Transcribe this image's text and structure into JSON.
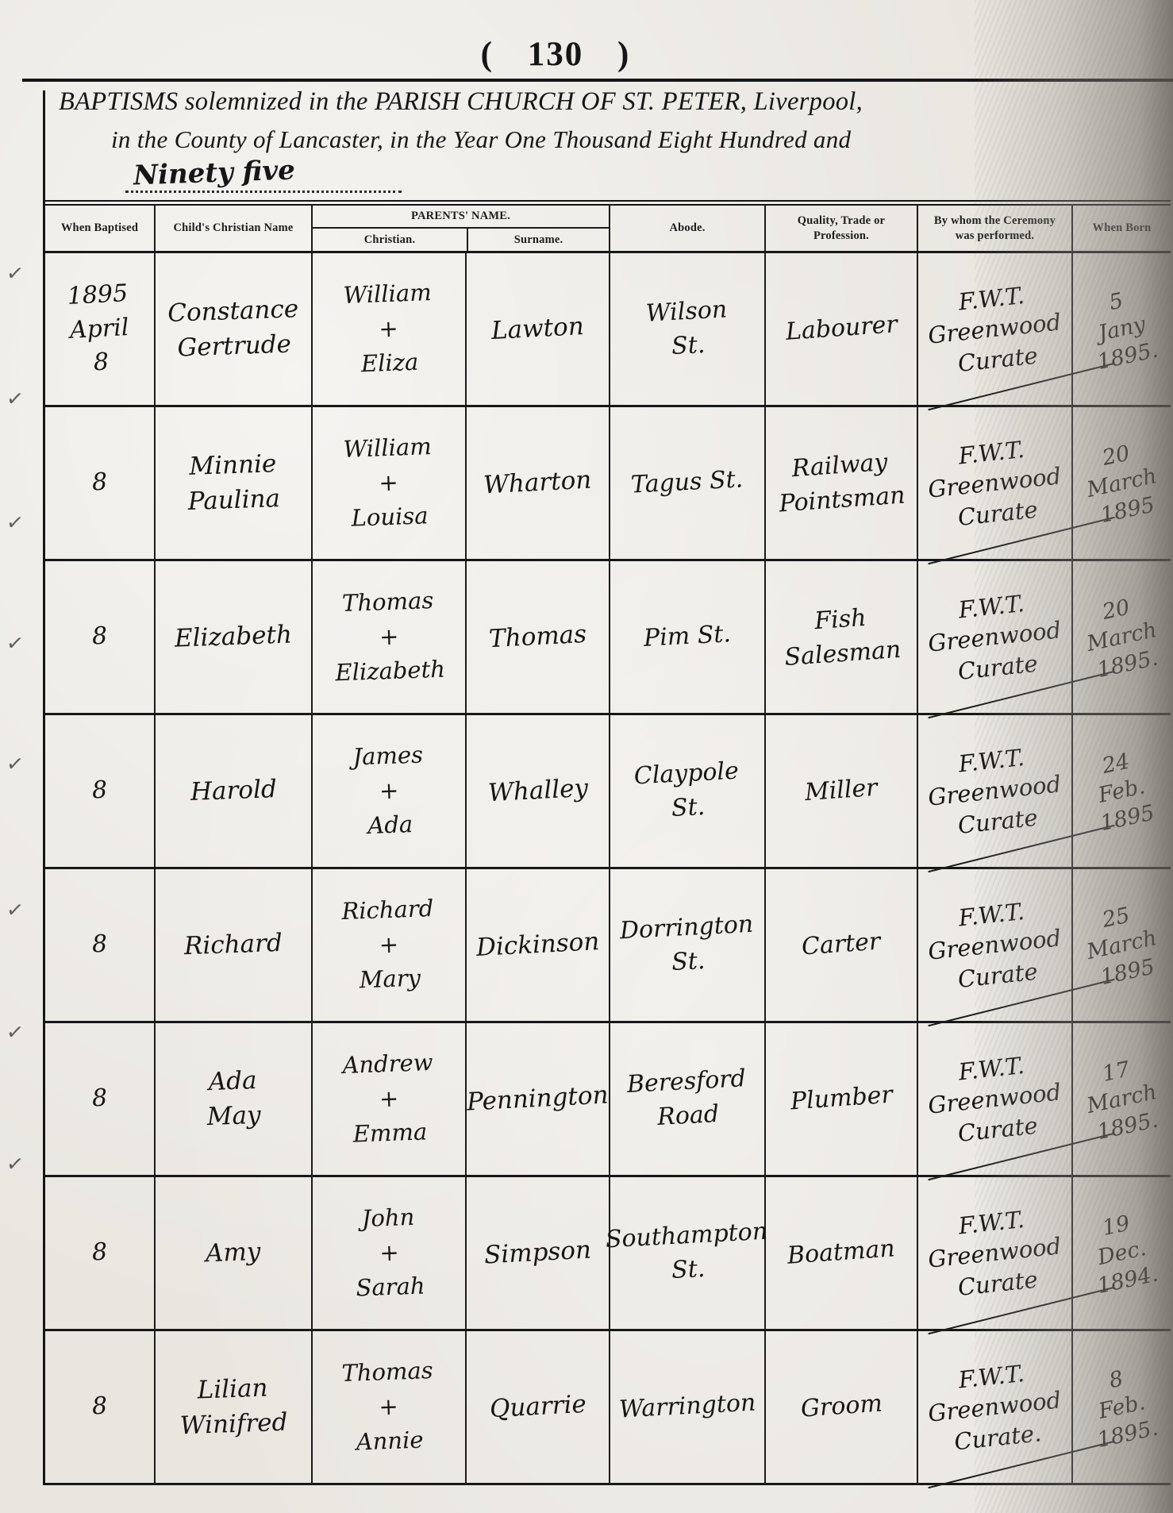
{
  "colors": {
    "ink": "#181614",
    "paper": "#e9e6e0"
  },
  "page": {
    "page_number": "( 130 )",
    "title_line1": "BAPTISMS solemnized in the PARISH CHURCH OF ST. PETER, Liverpool,",
    "title_line2": "in the County of Lancaster, in the Year One Thousand Eight Hundred and",
    "year_written": "Ninety five"
  },
  "table": {
    "headers": {
      "baptised": "When Baptised",
      "child": "Child's Christian Name",
      "parents": "PARENTS'  NAME.",
      "christian": "Christian.",
      "surname": "Surname.",
      "abode": "Abode.",
      "trade": "Quality, Trade or\nProfession.",
      "ceremony": "By whom the Ceremony\nwas performed.",
      "born": "When Born"
    },
    "rows": [
      {
        "mark": "✓",
        "baptised": "1895\nApril\n8",
        "child": "Constance\nGertrude",
        "parents": "William\n+\nEliza",
        "surname": "Lawton",
        "abode": "Wilson\nSt.",
        "trade": "Labourer",
        "ceremony": "F.W.T.\nGreenwood\nCurate",
        "born": "5\nJany\n1895."
      },
      {
        "mark": "✓",
        "baptised": "8",
        "child": "Minnie\nPaulina",
        "parents": "William\n+\nLouisa",
        "surname": "Wharton",
        "abode": "Tagus St.",
        "trade": "Railway\nPointsman",
        "ceremony": "F.W.T.\nGreenwood\nCurate",
        "born": "20\nMarch\n1895"
      },
      {
        "mark": "✓",
        "baptised": "8",
        "child": "Elizabeth",
        "parents": "Thomas\n+\nElizabeth",
        "surname": "Thomas",
        "abode": "Pim St.",
        "trade": "Fish\nSalesman",
        "ceremony": "F.W.T.\nGreenwood\nCurate",
        "born": "20\nMarch\n1895."
      },
      {
        "mark": "✓",
        "baptised": "8",
        "child": "Harold",
        "parents": "James\n+\nAda",
        "surname": "Whalley",
        "abode": "Claypole\nSt.",
        "trade": "Miller",
        "ceremony": "F.W.T.\nGreenwood\nCurate",
        "born": "24\nFeb.\n1895"
      },
      {
        "mark": "✓",
        "baptised": "8",
        "child": "Richard",
        "parents": "Richard\n+\nMary",
        "surname": "Dickinson",
        "abode": "Dorrington\nSt.",
        "trade": "Carter",
        "ceremony": "F.W.T.\nGreenwood\nCurate",
        "born": "25\nMarch\n1895"
      },
      {
        "mark": "✓",
        "baptised": "8",
        "child": "Ada\nMay",
        "parents": "Andrew\n+\nEmma",
        "surname": "Pennington",
        "abode": "Beresford\nRoad",
        "trade": "Plumber",
        "ceremony": "F.W.T.\nGreenwood\nCurate",
        "born": "17\nMarch\n1895."
      },
      {
        "mark": "✓",
        "baptised": "8",
        "child": "Amy",
        "parents": "John\n+\nSarah",
        "surname": "Simpson",
        "abode": "Southampton\nSt.",
        "trade": "Boatman",
        "ceremony": "F.W.T.\nGreenwood\nCurate",
        "born": "19\nDec.\n1894."
      },
      {
        "mark": "✓",
        "baptised": "8",
        "child": "Lilian\nWinifred",
        "parents": "Thomas\n+\nAnnie",
        "surname": "Quarrie",
        "abode": "Warrington",
        "trade": "Groom",
        "ceremony": "F.W.T.\nGreenwood\nCurate.",
        "born": "8\nFeb.\n1895."
      }
    ]
  }
}
